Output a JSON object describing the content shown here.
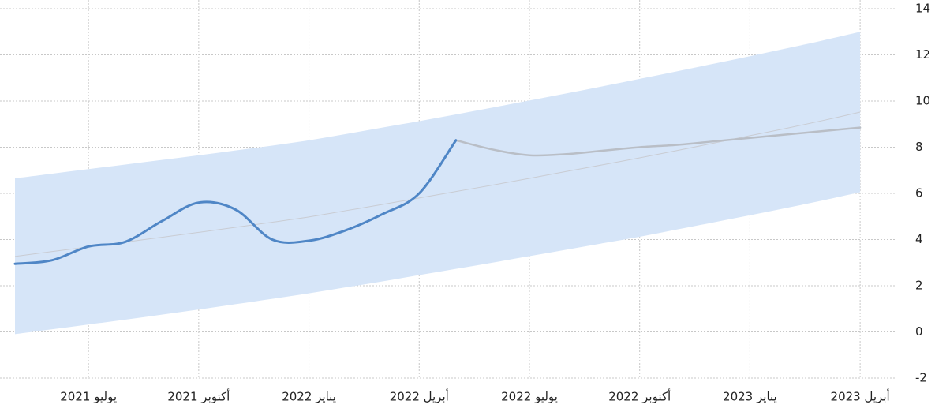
{
  "chart_data": {
    "type": "line",
    "x": [
      "2021-05",
      "2021-06",
      "2021-07",
      "2021-08",
      "2021-09",
      "2021-10",
      "2021-11",
      "2021-12",
      "2022-01",
      "2022-02",
      "2022-03",
      "2022-04",
      "2022-05",
      "2022-06",
      "2022-07",
      "2022-08",
      "2022-09",
      "2022-10",
      "2022-11",
      "2022-12",
      "2023-01",
      "2023-02",
      "2023-03",
      "2023-04"
    ],
    "xticks": [
      {
        "value": "2021-07",
        "label": "يوليو 2021"
      },
      {
        "value": "2021-10",
        "label": "أكتوبر 2021"
      },
      {
        "value": "2022-01",
        "label": "يناير 2022"
      },
      {
        "value": "2022-04",
        "label": "أبريل 2022"
      },
      {
        "value": "2022-07",
        "label": "يوليو 2022"
      },
      {
        "value": "2022-10",
        "label": "أكتوبر 2022"
      },
      {
        "value": "2023-01",
        "label": "يناير 2023"
      },
      {
        "value": "2023-04",
        "label": "أبريل 2023"
      }
    ],
    "series": [
      {
        "color": "#4f86c6",
        "values": [
          2.95,
          3.1,
          3.7,
          3.9,
          4.8,
          5.6,
          5.3,
          4.0,
          3.95,
          4.4,
          5.1,
          6.0,
          8.3,
          null,
          null,
          null,
          null,
          null,
          null,
          null,
          null,
          null,
          null,
          null
        ]
      },
      {
        "color": "#b9bec6",
        "values": [
          null,
          null,
          null,
          null,
          null,
          null,
          null,
          null,
          null,
          null,
          null,
          null,
          8.3,
          7.9,
          7.65,
          7.7,
          7.85,
          8.0,
          8.1,
          8.25,
          8.4,
          8.55,
          8.7,
          8.85
        ]
      }
    ],
    "band": {
      "color": "#d6e5f8",
      "upper": [
        6.65,
        6.85,
        7.05,
        7.25,
        7.45,
        7.65,
        7.86,
        8.07,
        8.3,
        8.57,
        8.85,
        9.13,
        9.42,
        9.72,
        10.02,
        10.33,
        10.64,
        10.96,
        11.28,
        11.61,
        11.94,
        12.28,
        12.63,
        13.0
      ],
      "lower": [
        -0.1,
        0.11,
        0.32,
        0.53,
        0.75,
        0.97,
        1.2,
        1.43,
        1.67,
        1.93,
        2.19,
        2.46,
        2.73,
        3.0,
        3.28,
        3.56,
        3.84,
        4.12,
        4.43,
        4.74,
        5.05,
        5.37,
        5.7,
        6.05
      ]
    },
    "trend": {
      "color": "#c9ccd3",
      "values": [
        3.27,
        3.48,
        3.68,
        3.89,
        4.1,
        4.31,
        4.53,
        4.75,
        4.98,
        5.25,
        5.52,
        5.8,
        6.08,
        6.36,
        6.65,
        6.95,
        7.24,
        7.54,
        7.85,
        8.17,
        8.5,
        8.82,
        9.16,
        9.52
      ]
    },
    "ylim": [
      -2,
      14
    ],
    "yticks": [
      -2,
      0,
      2,
      4,
      6,
      8,
      10,
      12,
      14
    ],
    "grid": true
  }
}
